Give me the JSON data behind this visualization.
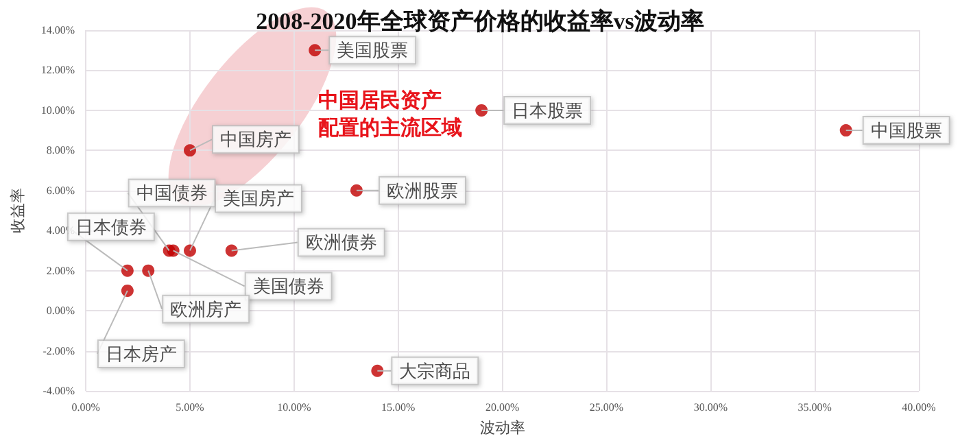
{
  "chart_data": {
    "type": "scatter",
    "title": "2008-2020年全球资产价格的收益率vs波动率",
    "xlabel": "波动率",
    "ylabel": "收益率",
    "x": [
      11,
      5,
      19,
      13,
      36.5,
      4,
      5,
      7,
      4.2,
      2,
      3,
      2,
      14
    ],
    "series": [
      {
        "color": "#c00000",
        "values": [
          13,
          8,
          10,
          6,
          9,
          3,
          3,
          3,
          3,
          2,
          2,
          1,
          -3
        ]
      }
    ],
    "annotations": [
      {
        "text": "美国股票",
        "x": 11,
        "y": 13
      },
      {
        "text": "中国房产",
        "x": 5,
        "y": 8
      },
      {
        "text": "日本股票",
        "x": 19,
        "y": 10
      },
      {
        "text": "欧洲股票",
        "x": 13,
        "y": 6
      },
      {
        "text": "中国股票",
        "x": 36.5,
        "y": 9
      },
      {
        "text": "中国债券",
        "x": 4,
        "y": 3
      },
      {
        "text": "美国房产",
        "x": 5,
        "y": 3
      },
      {
        "text": "欧洲债券",
        "x": 7,
        "y": 3
      },
      {
        "text": "美国债券",
        "x": 4.2,
        "y": 3
      },
      {
        "text": "日本债券",
        "x": 2,
        "y": 2
      },
      {
        "text": "欧洲房产",
        "x": 3,
        "y": 2
      },
      {
        "text": "日本房产",
        "x": 2,
        "y": 1
      },
      {
        "text": "大宗商品",
        "x": 14,
        "y": -3
      },
      "中国居民资产配置的主流区域"
    ],
    "xlim": [
      0,
      40
    ],
    "xticks": [
      {
        "value": 0,
        "label": "0.00%"
      },
      {
        "value": 5,
        "label": "5.00%"
      },
      {
        "value": 10,
        "label": "10.00%"
      },
      {
        "value": 15,
        "label": "15.00%"
      },
      {
        "value": 20,
        "label": "20.00%"
      },
      {
        "value": 25,
        "label": "25.00%"
      },
      {
        "value": 30,
        "label": "30.00%"
      },
      {
        "value": 35,
        "label": "35.00%"
      },
      {
        "value": 40,
        "label": "40.00%"
      }
    ],
    "ylim": [
      -4,
      14
    ],
    "yticks": [
      {
        "value": -4,
        "label": "-4.00%"
      },
      {
        "value": -2,
        "label": "-2.00%"
      },
      {
        "value": 0,
        "label": "0.00%"
      },
      {
        "value": 2,
        "label": "2.00%"
      },
      {
        "value": 4,
        "label": "4.00%"
      },
      {
        "value": 6,
        "label": "6.00%"
      },
      {
        "value": 8,
        "label": "8.00%"
      },
      {
        "value": 10,
        "label": "10.00%"
      },
      {
        "value": 12,
        "label": "12.00%"
      },
      {
        "value": 14,
        "label": "14.00%"
      }
    ],
    "grid": true,
    "marker": "circle"
  }
}
